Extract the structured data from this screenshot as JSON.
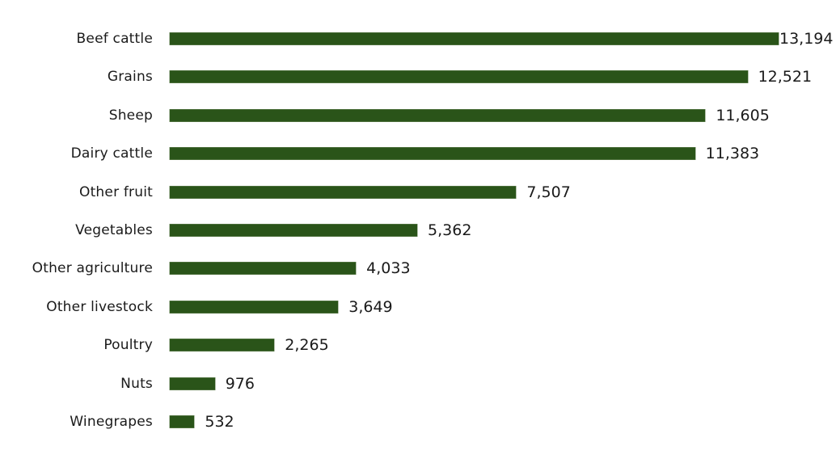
{
  "chart_data": {
    "type": "bar",
    "orientation": "horizontal",
    "title": "",
    "xlabel": "",
    "ylabel": "",
    "categories": [
      "Beef cattle",
      "Grains",
      "Sheep",
      "Dairy cattle",
      "Other fruit",
      "Vegetables",
      "Other agriculture",
      "Other livestock",
      "Poultry",
      "Nuts",
      "Winegrapes"
    ],
    "values": [
      13194,
      12521,
      11605,
      11383,
      7507,
      5362,
      4033,
      3649,
      2265,
      976,
      532
    ],
    "value_labels": [
      "13,194",
      "12,521",
      "11,605",
      "11,383",
      "7,507",
      "5,362",
      "4,033",
      "3,649",
      "2,265",
      "976",
      "532"
    ],
    "xlim": [
      0,
      13194
    ],
    "grid": false,
    "legend": null,
    "bar_color": "#2a5419"
  }
}
